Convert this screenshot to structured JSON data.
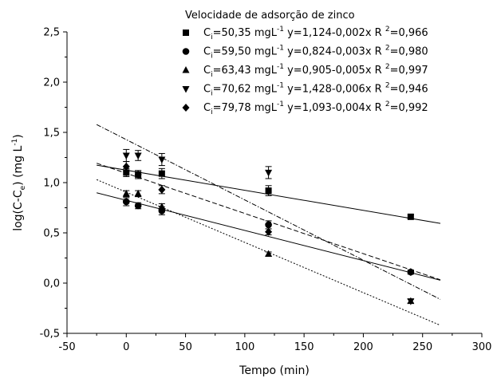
{
  "chart_data": {
    "type": "scatter",
    "xlabel": "Tempo (min)",
    "ylabel": {
      "prefix": "log(C-C",
      "sub": "e",
      "middle": ") (mg L",
      "sup": "-1",
      "suffix": ")"
    },
    "xlim": [
      -50,
      300
    ],
    "ylim": [
      -0.5,
      2.5
    ],
    "x_ticks": [
      -50,
      0,
      50,
      100,
      150,
      200,
      250,
      300
    ],
    "x_tick_labels": [
      "-50",
      "0",
      "50",
      "100",
      "150",
      "200",
      "250",
      "300"
    ],
    "y_ticks": [
      -0.5,
      0.0,
      0.5,
      1.0,
      1.5,
      2.0,
      2.5
    ],
    "y_tick_labels": [
      "-0,5",
      "0,0",
      "0,5",
      "1,0",
      "1,5",
      "2,0",
      "2,5"
    ],
    "legend": {
      "title": "Velocidade de adsorção de zinco",
      "placement": "top-right"
    },
    "series": [
      {
        "marker": "square",
        "ci": "=50,35 mgL",
        "equation": "y=1,124-0,002x",
        "r2": "=0,966",
        "intercept": 1.124,
        "slope": -0.002,
        "line_style": "solid",
        "line_x": [
          -25,
          265
        ],
        "points": [
          {
            "x": 0,
            "y": 1.1,
            "err": 0.04
          },
          {
            "x": 10,
            "y": 1.08,
            "err": 0.04
          },
          {
            "x": 30,
            "y": 1.09,
            "err": 0.05
          },
          {
            "x": 120,
            "y": 0.92,
            "err": 0.05
          },
          {
            "x": 240,
            "y": 0.66,
            "err": 0.02
          }
        ]
      },
      {
        "marker": "circle",
        "ci": "=59,50 mgL",
        "equation": "y=0,824-0,003x",
        "r2": "=0,980",
        "intercept": 0.824,
        "slope": -0.003,
        "line_style": "solid",
        "line_x": [
          -25,
          265
        ],
        "points": [
          {
            "x": 0,
            "y": 0.81,
            "err": 0.04
          },
          {
            "x": 10,
            "y": 0.77,
            "err": 0.03
          },
          {
            "x": 30,
            "y": 0.72,
            "err": 0.04
          },
          {
            "x": 120,
            "y": 0.58,
            "err": 0.04
          },
          {
            "x": 240,
            "y": 0.11,
            "err": 0.02
          }
        ]
      },
      {
        "marker": "triangle-up",
        "ci": "=63,43 mgL",
        "equation": "y=0,905-0,005x",
        "r2": "=0,997",
        "intercept": 0.905,
        "slope": -0.005,
        "line_style": "dotted",
        "line_x": [
          -25,
          265
        ],
        "points": [
          {
            "x": 0,
            "y": 0.89,
            "err": 0.03
          },
          {
            "x": 10,
            "y": 0.89,
            "err": 0.03
          },
          {
            "x": 30,
            "y": 0.76,
            "err": 0.03
          },
          {
            "x": 120,
            "y": 0.29,
            "err": 0.02
          },
          {
            "x": 240,
            "y": -0.18,
            "err": 0.02
          }
        ]
      },
      {
        "marker": "triangle-down",
        "ci": "=70,62 mgL",
        "equation": "y=1,428-0,006x",
        "r2": "=0,946",
        "intercept": 1.428,
        "slope": -0.006,
        "line_style": "dash-dot",
        "line_x": [
          -25,
          265
        ],
        "points": [
          {
            "x": 0,
            "y": 1.27,
            "err": 0.06
          },
          {
            "x": 10,
            "y": 1.27,
            "err": 0.05
          },
          {
            "x": 30,
            "y": 1.23,
            "err": 0.06
          },
          {
            "x": 120,
            "y": 1.1,
            "err": 0.06
          },
          {
            "x": 240,
            "y": -0.18,
            "err": 0.02
          }
        ]
      },
      {
        "marker": "diamond",
        "ci": "=79,78 mgL",
        "equation": "y=1,093-0,004x",
        "r2": "=0,992",
        "intercept": 1.093,
        "slope": -0.004,
        "line_style": "dashed",
        "line_x": [
          -25,
          265
        ],
        "points": [
          {
            "x": 0,
            "y": 1.16,
            "err": 0.05
          },
          {
            "x": 10,
            "y": 1.08,
            "err": 0.04
          },
          {
            "x": 30,
            "y": 0.93,
            "err": 0.04
          },
          {
            "x": 120,
            "y": 0.51,
            "err": 0.03
          },
          {
            "x": 240,
            "y": 0.11,
            "err": 0.02
          }
        ]
      }
    ],
    "legend_labels": {
      "c_letter": "C",
      "c_sub": "i",
      "unit_sup": "-1",
      "r_letter": "R",
      "r_sup": "2"
    }
  }
}
